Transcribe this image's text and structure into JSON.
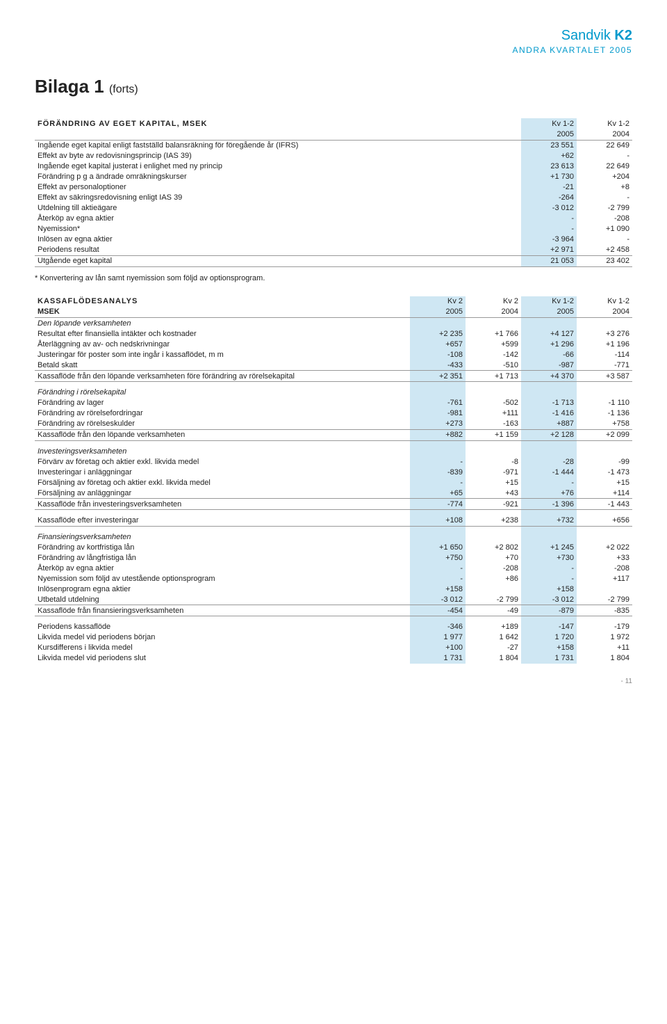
{
  "brand": {
    "name1": "Sandvik",
    "name2": "K2",
    "sub": "ANDRA KVARTALET 2005"
  },
  "page_title": {
    "main": "Bilaga 1",
    "suffix": "(forts)"
  },
  "table1": {
    "title": "FÖRÄNDRING AV EGET KAPITAL, MSEK",
    "header_top": [
      "",
      "Kv 1-2",
      "Kv 1-2"
    ],
    "header_bot": [
      "",
      "2005",
      "2004"
    ],
    "rows": [
      [
        "Ingående eget kapital enligt fastställd balansräkning för föregående år (IFRS)",
        "23 551",
        "22 649"
      ],
      [
        "Effekt av byte av redovisningsprincip (IAS 39)",
        "+62",
        "-"
      ],
      [
        "Ingående eget kapital justerat i enlighet med ny princip",
        "23 613",
        "22 649"
      ],
      [
        "Förändring p g a ändrade omräkningskurser",
        "+1 730",
        "+204"
      ],
      [
        "Effekt av personaloptioner",
        "-21",
        "+8"
      ],
      [
        "Effekt av säkringsredovisning enligt IAS 39",
        "-264",
        "-"
      ],
      [
        "Utdelning till aktieägare",
        "-3 012",
        "-2 799"
      ],
      [
        "Återköp av egna aktier",
        "-",
        "-208"
      ],
      [
        "Nyemission*",
        "-",
        "+1 090"
      ],
      [
        "Inlösen av egna aktier",
        "-3 964",
        "-"
      ],
      [
        "Periodens resultat",
        "+2 971",
        "+2 458"
      ],
      [
        "Utgående eget kapital",
        "21 053",
        "23 402"
      ]
    ],
    "footnote": "*   Konvertering av lån samt nyemission som följd av optionsprogram."
  },
  "table2": {
    "title": "KASSAFLÖDESANALYS",
    "header_top": [
      "",
      "Kv 2",
      "Kv 2",
      "Kv 1-2",
      "Kv 1-2"
    ],
    "header_bot": [
      "MSEK",
      "2005",
      "2004",
      "2005",
      "2004"
    ],
    "sections": [
      {
        "heading": "Den löpande verksamheten",
        "rows": [
          [
            "Resultat efter finansiella intäkter och kostnader",
            "+2 235",
            "+1 766",
            "+4 127",
            "+3 276"
          ],
          [
            "Återläggning av av- och nedskrivningar",
            "+657",
            "+599",
            "+1 296",
            "+1 196"
          ],
          [
            "Justeringar för poster som inte ingår i kassaflödet, m m",
            "-108",
            "-142",
            "-66",
            "-114"
          ],
          [
            "Betald skatt",
            "-433",
            "-510",
            "-987",
            "-771"
          ]
        ],
        "subtotal": [
          "Kassaflöde från den löpande verksamheten före förändring av rörelsekapital",
          "+2 351",
          "+1 713",
          "+4 370",
          "+3 587"
        ]
      },
      {
        "heading": "Förändring i rörelsekapital",
        "rows": [
          [
            "Förändring av lager",
            "-761",
            "-502",
            "-1 713",
            "-1 110"
          ],
          [
            "Förändring av rörelsefordringar",
            "-981",
            "+111",
            "-1 416",
            "-1 136"
          ],
          [
            "Förändring av rörelseskulder",
            "+273",
            "-163",
            "+887",
            "+758"
          ]
        ],
        "subtotal": [
          "Kassaflöde från den löpande verksamheten",
          "+882",
          "+1 159",
          "+2 128",
          "+2 099"
        ]
      },
      {
        "heading": "Investeringsverksamheten",
        "rows": [
          [
            "Förvärv av företag och aktier exkl. likvida medel",
            "-",
            "-8",
            "-28",
            "-99"
          ],
          [
            "Investeringar i anläggningar",
            "-839",
            "-971",
            "-1 444",
            "-1 473"
          ],
          [
            "Försäljning av företag och aktier exkl. likvida medel",
            "-",
            "+15",
            "-",
            "+15"
          ],
          [
            "Försäljning av anläggningar",
            "+65",
            "+43",
            "+76",
            "+114"
          ]
        ],
        "subtotal": [
          "Kassaflöde från investeringsverksamheten",
          "-774",
          "-921",
          "-1 396",
          "-1 443"
        ]
      },
      {
        "heading": "",
        "rows": [],
        "subtotal": [
          "Kassaflöde efter investeringar",
          "+108",
          "+238",
          "+732",
          "+656"
        ]
      },
      {
        "heading": "Finansieringsverksamheten",
        "rows": [
          [
            "Förändring av kortfristiga lån",
            "+1 650",
            "+2 802",
            "+1 245",
            "+2 022"
          ],
          [
            "Förändring av långfristiga lån",
            "+750",
            "+70",
            "+730",
            "+33"
          ],
          [
            "Återköp av egna aktier",
            "-",
            "-208",
            "-",
            "-208"
          ],
          [
            "Nyemission som följd av utestående optionsprogram",
            "-",
            "+86",
            "-",
            "+117"
          ],
          [
            "Inlösenprogram egna aktier",
            "+158",
            "",
            "+158",
            ""
          ],
          [
            "Utbetald utdelning",
            "-3 012",
            "-2 799",
            "-3 012",
            "-2 799"
          ]
        ],
        "subtotal": [
          "Kassaflöde från finansieringsverksamheten",
          "-454",
          "-49",
          "-879",
          "-835"
        ]
      },
      {
        "heading": "",
        "rows": [
          [
            "Periodens kassaflöde",
            "-346",
            "+189",
            "-147",
            "-179"
          ],
          [
            "Likvida medel vid periodens början",
            "1 977",
            "1 642",
            "1 720",
            "1 972"
          ],
          [
            "Kursdifferens i likvida medel",
            "+100",
            "-27",
            "+158",
            "+11"
          ],
          [
            "Likvida medel vid periodens slut",
            "1 731",
            "1 804",
            "1 731",
            "1 804"
          ]
        ],
        "subtotal": null
      }
    ]
  },
  "page_number": "- 11"
}
